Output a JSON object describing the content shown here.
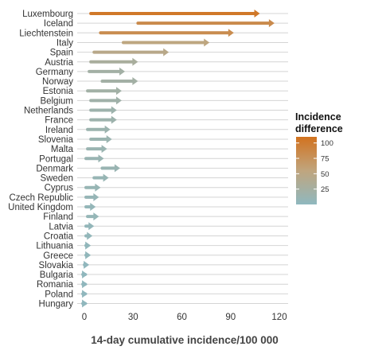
{
  "chart_data": {
    "type": "arrow-range",
    "xlabel": "14-day cumulative incidence/100 000",
    "xlim": [
      -3,
      121
    ],
    "xticks": [
      0,
      30,
      60,
      90,
      120
    ],
    "grid": true,
    "series": [
      {
        "country": "Luxembourg",
        "start": 4,
        "end": 108
      },
      {
        "country": "Iceland",
        "start": 33,
        "end": 117
      },
      {
        "country": "Liechtenstein",
        "start": 10,
        "end": 92
      },
      {
        "country": "Italy",
        "start": 24,
        "end": 77
      },
      {
        "country": "Spain",
        "start": 6,
        "end": 52
      },
      {
        "country": "Austria",
        "start": 4,
        "end": 33
      },
      {
        "country": "Germany",
        "start": 3,
        "end": 25
      },
      {
        "country": "Norway",
        "start": 11,
        "end": 33
      },
      {
        "country": "Estonia",
        "start": 2,
        "end": 23
      },
      {
        "country": "Belgium",
        "start": 4,
        "end": 23
      },
      {
        "country": "Netherlands",
        "start": 4,
        "end": 20
      },
      {
        "country": "France",
        "start": 4,
        "end": 20
      },
      {
        "country": "Ireland",
        "start": 2,
        "end": 16
      },
      {
        "country": "Slovenia",
        "start": 4,
        "end": 17
      },
      {
        "country": "Malta",
        "start": 2,
        "end": 14
      },
      {
        "country": "Portugal",
        "start": 1,
        "end": 12
      },
      {
        "country": "Denmark",
        "start": 11,
        "end": 22
      },
      {
        "country": "Sweden",
        "start": 6,
        "end": 15
      },
      {
        "country": "Cyprus",
        "start": 1,
        "end": 10
      },
      {
        "country": "Czech Republic",
        "start": 1,
        "end": 9
      },
      {
        "country": "United Kingdom",
        "start": 1,
        "end": 7
      },
      {
        "country": "Finland",
        "start": 2,
        "end": 9
      },
      {
        "country": "Latvia",
        "start": 1,
        "end": 6
      },
      {
        "country": "Croatia",
        "start": 1,
        "end": 5
      },
      {
        "country": "Lithuania",
        "start": 1,
        "end": 4
      },
      {
        "country": "Greece",
        "start": 1,
        "end": 4
      },
      {
        "country": "Slovakia",
        "start": 1,
        "end": 3
      },
      {
        "country": "Bulgaria",
        "start": 0.5,
        "end": 2
      },
      {
        "country": "Romania",
        "start": 0.5,
        "end": 2
      },
      {
        "country": "Poland",
        "start": 0.5,
        "end": 2
      },
      {
        "country": "Hungary",
        "start": 0.5,
        "end": 2
      }
    ],
    "legend": {
      "title_line1": "Incidence",
      "title_line2": "difference",
      "ticks": [
        25,
        50,
        75,
        100
      ],
      "range": [
        0,
        110
      ],
      "position": "right"
    },
    "color_scale": {
      "low": "#8fb8bf",
      "mid": "#c0a57e",
      "high": "#d2721f"
    }
  }
}
